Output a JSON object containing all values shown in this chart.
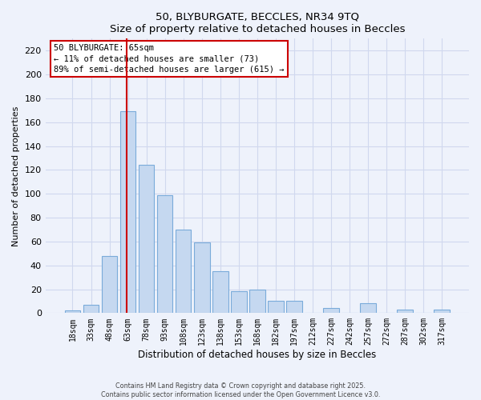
{
  "title": "50, BLYBURGATE, BECCLES, NR34 9TQ",
  "subtitle": "Size of property relative to detached houses in Beccles",
  "xlabel": "Distribution of detached houses by size in Beccles",
  "ylabel": "Number of detached properties",
  "bar_labels": [
    "18sqm",
    "33sqm",
    "48sqm",
    "63sqm",
    "78sqm",
    "93sqm",
    "108sqm",
    "123sqm",
    "138sqm",
    "153sqm",
    "168sqm",
    "182sqm",
    "197sqm",
    "212sqm",
    "227sqm",
    "242sqm",
    "257sqm",
    "272sqm",
    "287sqm",
    "302sqm",
    "317sqm"
  ],
  "bar_values": [
    2,
    7,
    48,
    169,
    124,
    99,
    70,
    59,
    35,
    18,
    20,
    10,
    10,
    0,
    4,
    0,
    8,
    0,
    3,
    0,
    3
  ],
  "bar_color": "#c5d8f0",
  "bar_edge_color": "#7aabda",
  "vline_index": 3,
  "vline_color": "#cc0000",
  "ylim": [
    0,
    230
  ],
  "yticks": [
    0,
    20,
    40,
    60,
    80,
    100,
    120,
    140,
    160,
    180,
    200,
    220
  ],
  "annotation_title": "50 BLYBURGATE: 65sqm",
  "annotation_line1": "← 11% of detached houses are smaller (73)",
  "annotation_line2": "89% of semi-detached houses are larger (615) →",
  "footer_line1": "Contains HM Land Registry data © Crown copyright and database right 2025.",
  "footer_line2": "Contains public sector information licensed under the Open Government Licence v3.0.",
  "bg_color": "#eef2fb",
  "grid_color": "#d0d8ee"
}
